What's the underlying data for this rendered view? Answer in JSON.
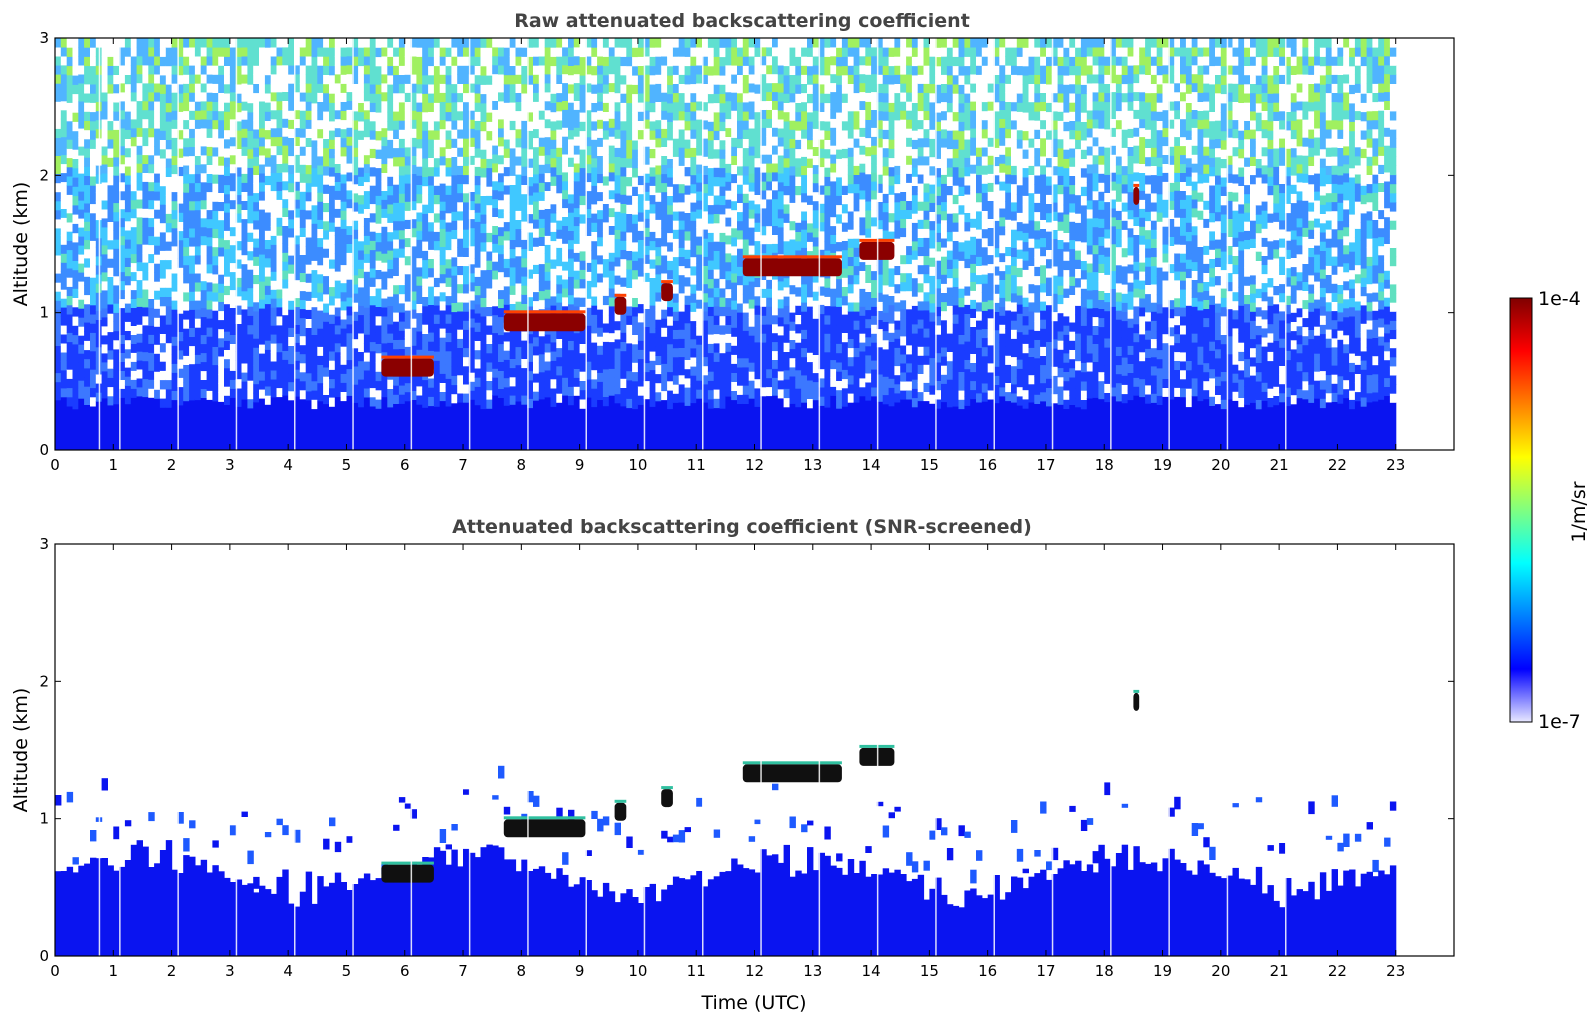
{
  "chart_data": [
    {
      "type": "heatmap",
      "title": "Raw attenuated backscattering coefficient",
      "xlabel": "",
      "ylabel": "Altitude (km)",
      "xlim": [
        0,
        24
      ],
      "ylim": [
        0,
        3
      ],
      "x_ticks": [
        "0",
        "1",
        "2",
        "3",
        "4",
        "5",
        "6",
        "7",
        "8",
        "9",
        "10",
        "11",
        "12",
        "13",
        "14",
        "15",
        "16",
        "17",
        "18",
        "19",
        "20",
        "21",
        "22",
        "23"
      ],
      "y_ticks": [
        "0",
        "1",
        "2",
        "3"
      ],
      "data_end_time": 23,
      "cloud_layers": [
        {
          "t_start": 5.6,
          "t_end": 6.5,
          "altitude": 0.6
        },
        {
          "t_start": 7.7,
          "t_end": 9.1,
          "altitude": 0.93
        },
        {
          "t_start": 9.6,
          "t_end": 9.8,
          "altitude": 1.05
        },
        {
          "t_start": 10.4,
          "t_end": 10.6,
          "altitude": 1.15
        },
        {
          "t_start": 11.8,
          "t_end": 13.5,
          "altitude": 1.33
        },
        {
          "t_start": 13.8,
          "t_end": 14.4,
          "altitude": 1.45
        },
        {
          "t_start": 18.5,
          "t_end": 18.6,
          "altitude": 1.85
        }
      ]
    },
    {
      "type": "heatmap",
      "title": "Attenuated backscattering coefficient (SNR-screened)",
      "xlabel": "Time (UTC)",
      "ylabel": "Altitude (km)",
      "xlim": [
        0,
        24
      ],
      "ylim": [
        0,
        3
      ],
      "x_ticks": [
        "0",
        "1",
        "2",
        "3",
        "4",
        "5",
        "6",
        "7",
        "8",
        "9",
        "10",
        "11",
        "12",
        "13",
        "14",
        "15",
        "16",
        "17",
        "18",
        "19",
        "20",
        "21",
        "22",
        "23"
      ],
      "y_ticks": [
        "0",
        "1",
        "2",
        "3"
      ],
      "data_end_time": 23
    }
  ],
  "colorbar": {
    "label": "1/m/sr",
    "max_label": "1e-4",
    "min_label": "1e-7",
    "colors": [
      "#e8e8ff",
      "#0000ff",
      "#0080ff",
      "#00ffff",
      "#80ff80",
      "#ffff00",
      "#ff8000",
      "#ff0000",
      "#800000"
    ]
  }
}
